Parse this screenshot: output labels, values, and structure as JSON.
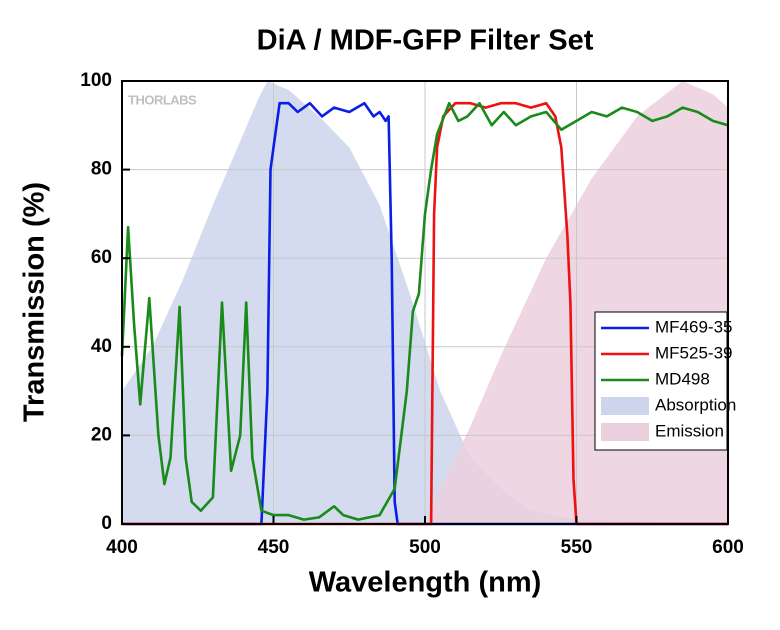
{
  "chart_data": {
    "type": "line",
    "title": "DiA / MDF-GFP Filter Set",
    "xlabel": "Wavelength (nm)",
    "ylabel": "Transmission (%)",
    "watermark": "THORLABS",
    "xlim": [
      400,
      600
    ],
    "xticks": [
      400,
      450,
      500,
      550,
      600
    ],
    "ylim": [
      0,
      100
    ],
    "yticks": [
      0,
      20,
      40,
      60,
      80,
      100
    ],
    "grid": true,
    "legend": "right",
    "series": [
      {
        "name": "MF469-35",
        "color": "#0a1fe6",
        "style": "line",
        "x": [
          400,
          446,
          448,
          449,
          450,
          452,
          455,
          458,
          462,
          466,
          470,
          475,
          480,
          483,
          485,
          487,
          488,
          489,
          490,
          491,
          600
        ],
        "values": [
          0,
          0,
          30,
          80,
          85,
          95,
          95,
          93,
          95,
          92,
          94,
          93,
          95,
          92,
          93,
          91,
          92,
          60,
          5,
          0,
          0
        ]
      },
      {
        "name": "MF525-39",
        "color": "#ee1111",
        "style": "line",
        "x": [
          400,
          502,
          503,
          504,
          506,
          510,
          515,
          520,
          525,
          530,
          535,
          540,
          543,
          545,
          546,
          547,
          548,
          549,
          550,
          600
        ],
        "values": [
          0,
          0,
          70,
          85,
          92,
          95,
          95,
          94,
          95,
          95,
          94,
          95,
          92,
          85,
          75,
          65,
          50,
          10,
          0,
          0
        ]
      },
      {
        "name": "MD498",
        "color": "#1a8a1a",
        "style": "line",
        "x": [
          400,
          402,
          404,
          406,
          409,
          412,
          414,
          416,
          419,
          421,
          423,
          426,
          430,
          433,
          436,
          439,
          441,
          443,
          446,
          450,
          455,
          460,
          465,
          470,
          473,
          478,
          485,
          490,
          494,
          496,
          498,
          500,
          502,
          504,
          508,
          511,
          514,
          518,
          522,
          526,
          530,
          535,
          540,
          545,
          550,
          555,
          560,
          565,
          570,
          575,
          580,
          585,
          590,
          595,
          600
        ],
        "values": [
          38,
          67,
          45,
          27,
          51,
          20,
          9,
          15,
          49,
          15,
          5,
          3,
          6,
          50,
          12,
          20,
          50,
          15,
          3,
          2,
          2,
          1,
          1.5,
          4,
          2,
          1,
          2,
          8,
          30,
          48,
          52,
          70,
          80,
          88,
          95,
          91,
          92,
          95,
          90,
          93,
          90,
          92,
          93,
          89,
          91,
          93,
          92,
          94,
          93,
          91,
          92,
          94,
          93,
          91,
          90
        ]
      },
      {
        "name": "Absorption",
        "color": "#cdd5ec",
        "style": "area",
        "x": [
          400,
          410,
          420,
          430,
          440,
          445,
          448,
          455,
          465,
          475,
          485,
          495,
          505,
          515,
          525,
          535,
          550,
          600
        ],
        "values": [
          30,
          40,
          55,
          72,
          88,
          96,
          100,
          98,
          92,
          85,
          72,
          52,
          30,
          15,
          8,
          3,
          1,
          0
        ]
      },
      {
        "name": "Emission",
        "color": "#ebcfdd",
        "style": "area",
        "x": [
          500,
          505,
          515,
          525,
          540,
          555,
          570,
          585,
          595,
          600
        ],
        "values": [
          0,
          8,
          22,
          38,
          60,
          78,
          92,
          100,
          97,
          94
        ]
      }
    ]
  }
}
